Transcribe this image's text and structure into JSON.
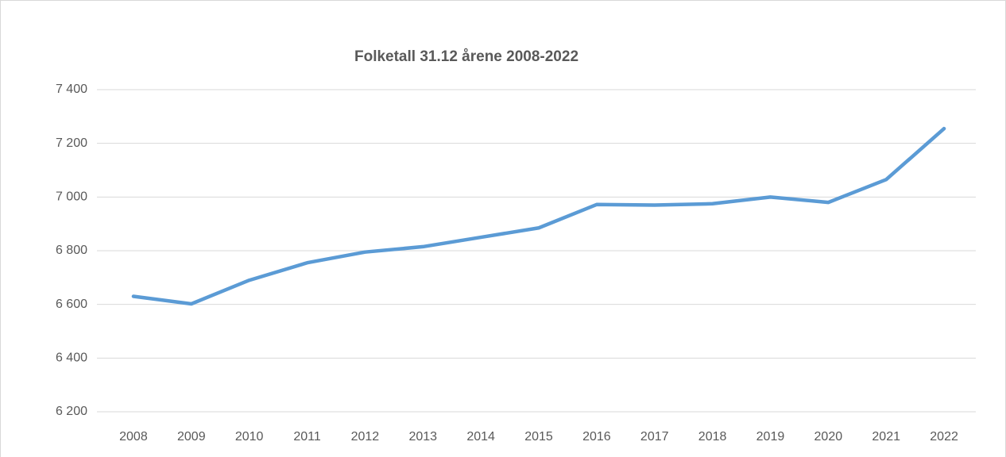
{
  "chart_data": {
    "type": "line",
    "title": "Folketall 31.12 årene 2008-2022",
    "categories": [
      "2008",
      "2009",
      "2010",
      "2011",
      "2012",
      "2013",
      "2014",
      "2015",
      "2016",
      "2017",
      "2018",
      "2019",
      "2020",
      "2021",
      "2022"
    ],
    "series": [
      {
        "name": "Folketall",
        "color": "#5b9bd5",
        "values": [
          6630,
          6602,
          6690,
          6755,
          6795,
          6815,
          6850,
          6885,
          6972,
          6970,
          6975,
          7000,
          6980,
          7065,
          7255
        ]
      }
    ],
    "ylim": [
      6200,
      7400
    ],
    "yticks": [
      {
        "value": 6200,
        "label": "6 200"
      },
      {
        "value": 6400,
        "label": "6 400"
      },
      {
        "value": 6600,
        "label": "6 600"
      },
      {
        "value": 6800,
        "label": "6 800"
      },
      {
        "value": 7000,
        "label": "7 000"
      },
      {
        "value": 7200,
        "label": "7 200"
      },
      {
        "value": 7400,
        "label": "7 400"
      }
    ],
    "grid": true
  }
}
